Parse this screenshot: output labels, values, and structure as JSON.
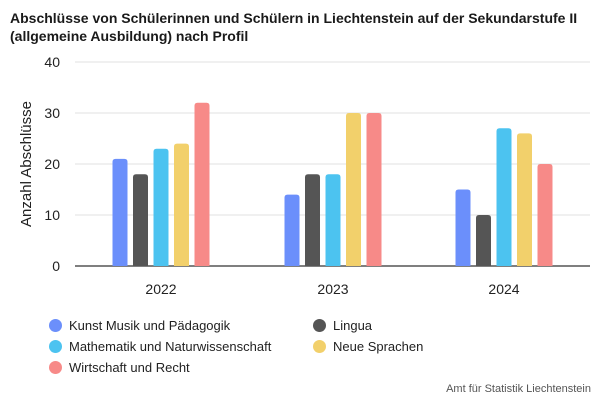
{
  "title_lines": [
    "Abschlüsse von Schülerinnen und Schülern in Liechtenstein auf der Sekundarstufe II",
    "(allgemeine Ausbildung) nach Profil"
  ],
  "source": "Amt für Statistik Liechtenstein",
  "chart_data": {
    "type": "bar",
    "title": "Abschlüsse von Schülerinnen und Schülern in Liechtenstein auf der Sekundarstufe II (allgemeine Ausbildung) nach Profil",
    "xlabel": "",
    "ylabel": "Anzahl Abschlüsse",
    "ylim": [
      0,
      40
    ],
    "yticks": [
      0,
      10,
      20,
      30,
      40
    ],
    "grid": true,
    "legend_position": "bottom",
    "categories": [
      "2022",
      "2023",
      "2024"
    ],
    "series": [
      {
        "name": "Kunst Musik und Pädagogik",
        "color": "#6b8ffb",
        "values": [
          21,
          14,
          15
        ]
      },
      {
        "name": "Lingua",
        "color": "#555555",
        "values": [
          18,
          18,
          10
        ]
      },
      {
        "name": "Mathematik und Naturwissenschaft",
        "color": "#4cc3f0",
        "values": [
          23,
          18,
          27
        ]
      },
      {
        "name": "Neue Sprachen",
        "color": "#f2d06b",
        "values": [
          24,
          30,
          26
        ]
      },
      {
        "name": "Wirtschaft und Recht",
        "color": "#f78a88",
        "values": [
          32,
          30,
          20
        ]
      }
    ]
  }
}
